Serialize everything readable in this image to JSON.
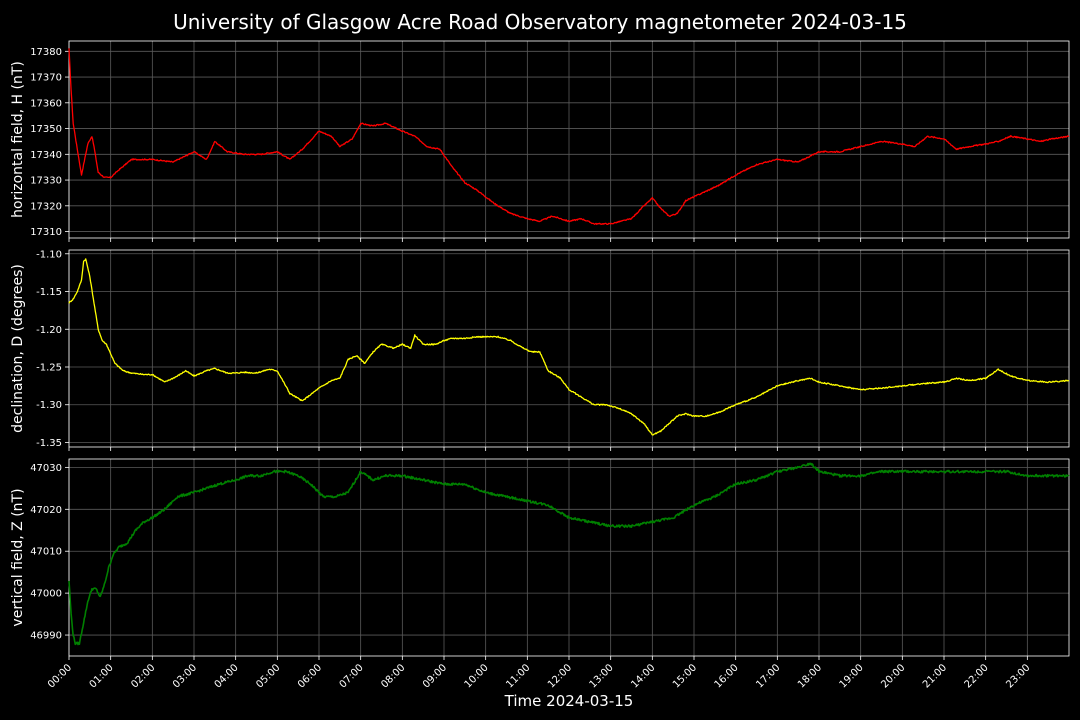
{
  "title": "University of Glasgow Acre Road Observatory magnetometer 2024-03-15",
  "xlabel": "Time 2024-03-15",
  "x_ticks": [
    "00:00",
    "01:00",
    "02:00",
    "03:00",
    "04:00",
    "05:00",
    "06:00",
    "07:00",
    "08:00",
    "09:00",
    "10:00",
    "11:00",
    "12:00",
    "13:00",
    "14:00",
    "15:00",
    "16:00",
    "17:00",
    "18:00",
    "19:00",
    "20:00",
    "21:00",
    "22:00",
    "23:00"
  ],
  "colors": {
    "background": "#000000",
    "grid": "#5a5a5a",
    "H": "#ff0000",
    "D": "#ffff00",
    "Z": "#008000"
  },
  "chart_data": [
    {
      "type": "line",
      "ylabel": "horizontal field, H (nT)",
      "x_unit": "hours since 00:00",
      "xlim": [
        0,
        24
      ],
      "ylim": [
        17307.5,
        17384
      ],
      "y_ticks": [
        17310,
        17320,
        17330,
        17340,
        17350,
        17360,
        17370,
        17380
      ],
      "grid": true,
      "series": [
        {
          "color": "#ff0000",
          "x": [
            0,
            0.05,
            0.1,
            0.2,
            0.3,
            0.45,
            0.55,
            0.6,
            0.7,
            0.85,
            1.0,
            1.2,
            1.5,
            2.0,
            2.5,
            3.0,
            3.3,
            3.5,
            3.8,
            4.2,
            4.6,
            5.0,
            5.3,
            5.6,
            6.0,
            6.3,
            6.5,
            6.8,
            7.0,
            7.3,
            7.6,
            8.0,
            8.3,
            8.6,
            8.9,
            9.2,
            9.5,
            9.8,
            10.2,
            10.6,
            11.0,
            11.3,
            11.6,
            12.0,
            12.3,
            12.6,
            13.0,
            13.5,
            13.8,
            14.0,
            14.2,
            14.4,
            14.6,
            14.8,
            15.2,
            15.6,
            16.0,
            16.5,
            17.0,
            17.5,
            18.0,
            18.5,
            19.0,
            19.5,
            20.0,
            20.3,
            20.6,
            21.0,
            21.3,
            21.6,
            22.0,
            22.3,
            22.6,
            23.0,
            23.3,
            23.6,
            24.0
          ],
          "y": [
            17381,
            17365,
            17352,
            17342,
            17332,
            17344,
            17347,
            17343,
            17333,
            17331,
            17331,
            17334,
            17338,
            17338,
            17337,
            17341,
            17338,
            17345,
            17341,
            17340,
            17340,
            17341,
            17338,
            17342,
            17349,
            17347,
            17343,
            17346,
            17352,
            17351,
            17352,
            17349,
            17347,
            17343,
            17342,
            17335,
            17329,
            17326,
            17321,
            17317,
            17315,
            17314,
            17316,
            17314,
            17315,
            17313,
            17313,
            17315,
            17320,
            17323,
            17319,
            17316,
            17317,
            17322,
            17325,
            17328,
            17332,
            17336,
            17338,
            17337,
            17341,
            17341,
            17343,
            17345,
            17344,
            17343,
            17347,
            17346,
            17342,
            17343,
            17344,
            17345,
            17347,
            17346,
            17345,
            17346,
            17347
          ]
        }
      ]
    },
    {
      "type": "line",
      "ylabel": "declination, D (degrees)",
      "x_unit": "hours since 00:00",
      "xlim": [
        0,
        24
      ],
      "ylim": [
        -1.356,
        -1.095
      ],
      "y_ticks": [
        -1.1,
        -1.15,
        -1.2,
        -1.25,
        -1.3,
        -1.35
      ],
      "grid": true,
      "series": [
        {
          "color": "#ffff00",
          "x": [
            0,
            0.1,
            0.2,
            0.3,
            0.35,
            0.4,
            0.5,
            0.6,
            0.7,
            0.8,
            0.9,
            1.1,
            1.3,
            1.5,
            1.8,
            2.0,
            2.3,
            2.6,
            2.8,
            3.0,
            3.3,
            3.5,
            3.8,
            4.0,
            4.2,
            4.5,
            4.8,
            5.0,
            5.3,
            5.6,
            6.0,
            6.3,
            6.5,
            6.7,
            6.9,
            7.1,
            7.3,
            7.5,
            7.8,
            8.0,
            8.2,
            8.3,
            8.5,
            8.8,
            9.0,
            9.2,
            9.5,
            9.8,
            10.0,
            10.3,
            10.6,
            10.9,
            11.1,
            11.3,
            11.5,
            11.8,
            12.0,
            12.3,
            12.6,
            12.9,
            13.2,
            13.5,
            13.8,
            14.0,
            14.2,
            14.4,
            14.6,
            14.8,
            15.0,
            15.3,
            15.6,
            16.0,
            16.5,
            17.0,
            17.5,
            17.8,
            18.0,
            18.5,
            19.0,
            19.5,
            20.0,
            20.5,
            21.0,
            21.3,
            21.6,
            22.0,
            22.3,
            22.6,
            23.0,
            23.5,
            24.0
          ],
          "y": [
            -1.165,
            -1.16,
            -1.15,
            -1.135,
            -1.11,
            -1.107,
            -1.13,
            -1.165,
            -1.2,
            -1.215,
            -1.22,
            -1.245,
            -1.255,
            -1.258,
            -1.26,
            -1.26,
            -1.27,
            -1.262,
            -1.255,
            -1.262,
            -1.255,
            -1.252,
            -1.258,
            -1.258,
            -1.257,
            -1.258,
            -1.253,
            -1.255,
            -1.285,
            -1.295,
            -1.278,
            -1.268,
            -1.265,
            -1.24,
            -1.235,
            -1.245,
            -1.23,
            -1.22,
            -1.225,
            -1.22,
            -1.225,
            -1.208,
            -1.22,
            -1.22,
            -1.215,
            -1.212,
            -1.212,
            -1.21,
            -1.21,
            -1.21,
            -1.215,
            -1.225,
            -1.23,
            -1.23,
            -1.255,
            -1.265,
            -1.28,
            -1.29,
            -1.3,
            -1.3,
            -1.305,
            -1.312,
            -1.325,
            -1.34,
            -1.335,
            -1.325,
            -1.315,
            -1.312,
            -1.315,
            -1.315,
            -1.31,
            -1.3,
            -1.29,
            -1.275,
            -1.268,
            -1.265,
            -1.27,
            -1.275,
            -1.28,
            -1.278,
            -1.275,
            -1.272,
            -1.27,
            -1.265,
            -1.268,
            -1.265,
            -1.253,
            -1.262,
            -1.268,
            -1.27,
            -1.268
          ]
        }
      ]
    },
    {
      "type": "line",
      "ylabel": "vertical field, Z (nT)",
      "x_unit": "hours since 00:00",
      "xlim": [
        0,
        24
      ],
      "ylim": [
        46985,
        47032
      ],
      "y_ticks": [
        46990,
        47000,
        47010,
        47020,
        47030
      ],
      "grid": true,
      "series": [
        {
          "color": "#008000",
          "x": [
            0,
            0.05,
            0.1,
            0.15,
            0.25,
            0.35,
            0.45,
            0.55,
            0.65,
            0.75,
            0.85,
            0.95,
            1.05,
            1.2,
            1.4,
            1.6,
            1.8,
            2.0,
            2.3,
            2.6,
            3.0,
            3.3,
            3.6,
            4.0,
            4.3,
            4.6,
            4.9,
            5.2,
            5.5,
            5.8,
            6.1,
            6.4,
            6.7,
            7.0,
            7.3,
            7.6,
            8.0,
            8.5,
            9.0,
            9.5,
            10.0,
            10.5,
            11.0,
            11.5,
            12.0,
            12.5,
            13.0,
            13.5,
            14.0,
            14.5,
            15.0,
            15.5,
            16.0,
            16.5,
            17.0,
            17.5,
            17.8,
            18.0,
            18.5,
            19.0,
            19.5,
            20.0,
            20.5,
            21.0,
            21.5,
            22.0,
            22.5,
            23.0,
            23.5,
            24.0
          ],
          "y": [
            47003,
            46995,
            46990,
            46988,
            46988,
            46993,
            46998,
            47001,
            47001,
            46999,
            47002,
            47006,
            47009,
            47011,
            47012,
            47015,
            47017,
            47018,
            47020,
            47023,
            47024,
            47025,
            47026,
            47027,
            47028,
            47028,
            47029,
            47029,
            47028,
            47026,
            47023,
            47023,
            47024,
            47029,
            47027,
            47028,
            47028,
            47027,
            47026,
            47026,
            47024,
            47023,
            47022,
            47021,
            47018,
            47017,
            47016,
            47016,
            47017,
            47018,
            47021,
            47023,
            47026,
            47027,
            47029,
            47030,
            47031,
            47029,
            47028,
            47028,
            47029,
            47029,
            47029,
            47029,
            47029,
            47029,
            47029,
            47028,
            47028,
            47028
          ]
        }
      ]
    }
  ]
}
